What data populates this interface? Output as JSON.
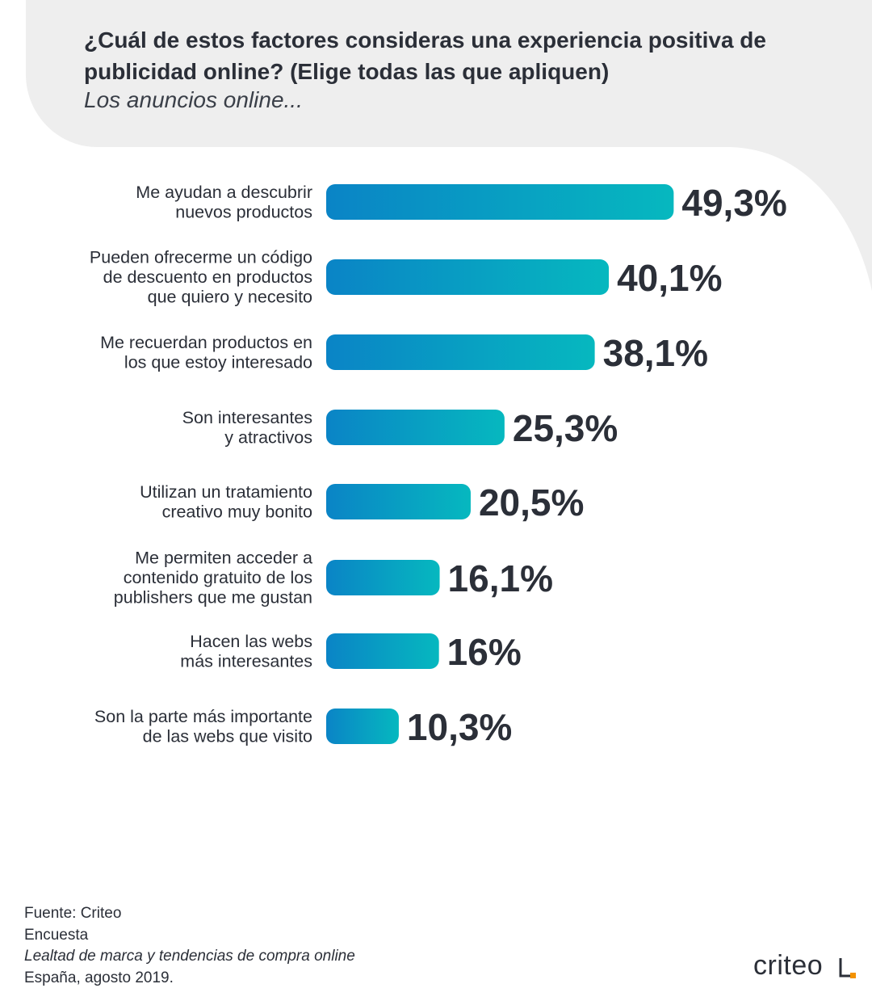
{
  "title": "¿Cuál de estos factores consideras una experiencia positiva de publicidad online? (Elige todas las que apliquen)",
  "subtitle": "Los anuncios online...",
  "colors": {
    "background_shape": "#eeeeee",
    "bar_start": "#0a84c6",
    "bar_end": "#06b8bf",
    "text": "#2b2f38",
    "logo_accent": "#f39200"
  },
  "chart_data": {
    "type": "bar",
    "orientation": "horizontal",
    "categories": [
      [
        "Me ayudan a descubrir",
        "nuevos productos"
      ],
      [
        "Pueden ofrecerme un código",
        "de descuento en productos",
        "que quiero y necesito"
      ],
      [
        "Me recuerdan productos en",
        "los que estoy interesado"
      ],
      [
        "Son interesantes",
        "y atractivos"
      ],
      [
        "Utilizan un tratamiento",
        "creativo muy bonito"
      ],
      [
        "Me permiten acceder a",
        "contenido gratuito de los",
        "publishers que me gustan"
      ],
      [
        "Hacen las webs",
        "más interesantes"
      ],
      [
        "Son la parte más importante",
        "de las webs que visito"
      ]
    ],
    "values": [
      49.3,
      40.1,
      38.1,
      25.3,
      20.5,
      16.1,
      16,
      10.3
    ],
    "value_labels": [
      "49,3%",
      "40,1%",
      "38,1%",
      "25,3%",
      "20,5%",
      "16,1%",
      "16%",
      "10,3%"
    ],
    "grid": false,
    "legend": false
  },
  "footer": {
    "line1": "Fuente: Criteo",
    "line2": "Encuesta",
    "line3": "Lealtad de marca y tendencias de compra online",
    "line4": "España, agosto 2019."
  },
  "logo": {
    "text": "criteo",
    "icon": "criteo-corner-mark"
  }
}
